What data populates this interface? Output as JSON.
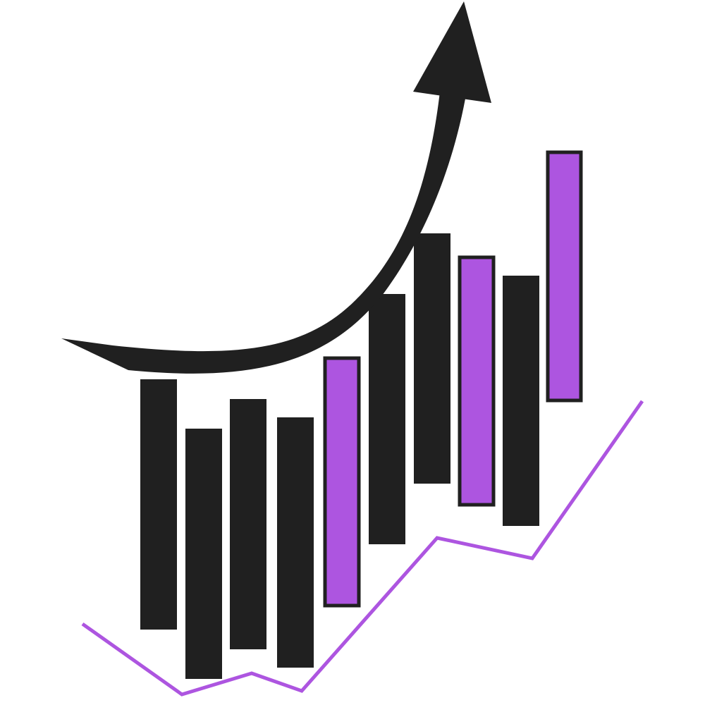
{
  "colors": {
    "background": "#ffffff",
    "dark_bar": "#202020",
    "accent_bar": "#ad55e0",
    "bar_outline": "#202020",
    "trend_line": "#ad55e0",
    "arrow": "#202020"
  },
  "icons": {
    "trend_arrow": "curved-up-arrow-icon",
    "trend_line": "zigzag-line"
  },
  "candles": [
    {
      "style": "dark"
    },
    {
      "style": "dark"
    },
    {
      "style": "dark"
    },
    {
      "style": "dark"
    },
    {
      "style": "accent"
    },
    {
      "style": "dark"
    },
    {
      "style": "dark"
    },
    {
      "style": "accent"
    },
    {
      "style": "dark"
    },
    {
      "style": "accent"
    }
  ]
}
